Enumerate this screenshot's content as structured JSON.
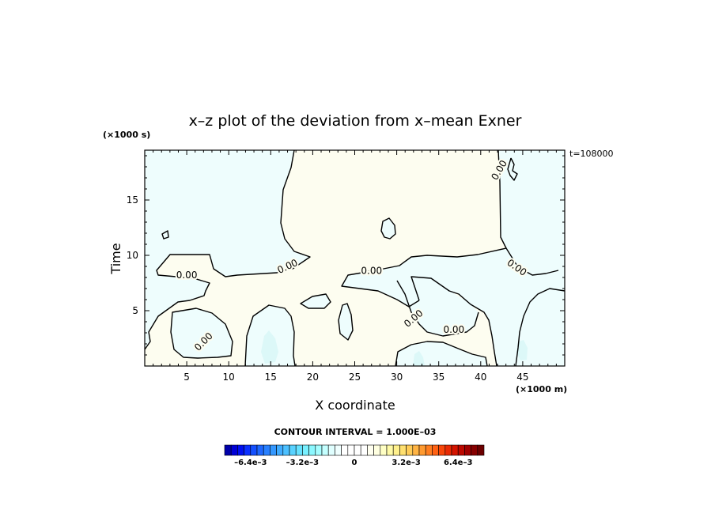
{
  "chart_data": {
    "type": "contour",
    "title": "x–z plot of the deviation from x–mean Exner",
    "xlabel": "X coordinate",
    "ylabel": "Time",
    "x_unit": "(×1000 m)",
    "y_unit": "(×1000 s)",
    "time_label": "t=108000",
    "xlim": [
      0,
      50
    ],
    "ylim": [
      0,
      19.5
    ],
    "x_ticks": [
      5,
      10,
      15,
      20,
      25,
      30,
      35,
      40,
      45
    ],
    "y_ticks": [
      5,
      10,
      15
    ],
    "contour_interval_label": "CONTOUR INTERVAL = 1.000E–03",
    "contour_labels": [
      {
        "text": "0.00",
        "x": 5.0,
        "y": 8.2,
        "angle": 0
      },
      {
        "text": "0.00",
        "x": 17.0,
        "y": 9.0,
        "angle": -25
      },
      {
        "text": "0.00",
        "x": 27.0,
        "y": 8.6,
        "angle": 0
      },
      {
        "text": "0.00",
        "x": 7.0,
        "y": 2.2,
        "angle": -45
      },
      {
        "text": "0.00",
        "x": 32.0,
        "y": 4.3,
        "angle": -40
      },
      {
        "text": "0.00",
        "x": 36.8,
        "y": 3.3,
        "angle": 0
      },
      {
        "text": "0.00",
        "x": 44.3,
        "y": 8.9,
        "angle": 35
      },
      {
        "text": "0.00",
        "x": 42.2,
        "y": 17.7,
        "angle": -60
      }
    ],
    "colorbar": {
      "min": -0.008,
      "max": 0.008,
      "interval": 0.0004,
      "tick_labels": [
        "–6.4e–3",
        "–3.2e–3",
        "0",
        "3.2e–3",
        "6.4e–3"
      ],
      "tick_values": [
        -0.0064,
        -0.0032,
        0,
        0.0032,
        0.0064
      ],
      "colors": [
        "#0000aa",
        "#0000d6",
        "#0010f0",
        "#0a30ff",
        "#1450ff",
        "#1e68ff",
        "#2880ff",
        "#3498ff",
        "#40acff",
        "#4cc0ff",
        "#58d2ff",
        "#66e2ff",
        "#78f0ff",
        "#8cf8ff",
        "#a6fdff",
        "#c4ffff",
        "#e0ffff",
        "#f0ffff",
        "#ffffff",
        "#ffffff",
        "#ffffff",
        "#ffffff",
        "#fffff0",
        "#ffffe0",
        "#ffffc4",
        "#fffaa6",
        "#fff08c",
        "#ffe070",
        "#ffcc58",
        "#ffb444",
        "#ff9a30",
        "#ff7e20",
        "#ff6214",
        "#f8460a",
        "#e82a04",
        "#d41400",
        "#bc0800",
        "#a00000",
        "#860000",
        "#6c0000"
      ]
    },
    "field_colors": {
      "negative_weak": "#eefdfd",
      "positive_weak": "#fdfdf0",
      "negative_moderate": "#dcf8f8"
    }
  }
}
